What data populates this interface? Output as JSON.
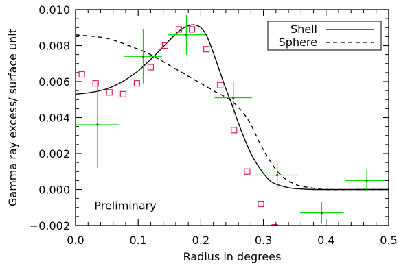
{
  "chart_data": {
    "type": "line",
    "title": "",
    "xlabel": "Radius in degrees",
    "ylabel": "Gamma ray excess/ surface unit",
    "xlim": [
      0,
      0.5
    ],
    "ylim": [
      -0.002,
      0.01
    ],
    "x_ticks": [
      0.0,
      0.1,
      0.2,
      0.3,
      0.4,
      0.5
    ],
    "x_tick_labels": [
      "0.0",
      "0.1",
      "0.2",
      "0.3",
      "0.4",
      "0.5"
    ],
    "y_ticks": [
      -0.002,
      0.0,
      0.002,
      0.004,
      0.006,
      0.008,
      0.01
    ],
    "y_tick_labels": [
      "−0.002",
      "0.000",
      "0.002",
      "0.004",
      "0.006",
      "0.008",
      "0.010"
    ],
    "grid": false,
    "legend_position": "top-right",
    "annotation": "Preliminary",
    "colors": {
      "shell": "#000000",
      "sphere": "#000000",
      "data_points": "#00dd00",
      "squares": "#e0205a"
    },
    "series": [
      {
        "name": "Shell",
        "kind": "curve",
        "style": "solid",
        "x": [
          0.0,
          0.025,
          0.05,
          0.075,
          0.1,
          0.125,
          0.15,
          0.165,
          0.18,
          0.19,
          0.2,
          0.21,
          0.22,
          0.23,
          0.24,
          0.25,
          0.26,
          0.27,
          0.28,
          0.29,
          0.3,
          0.31,
          0.32,
          0.34,
          0.36,
          0.38,
          0.4,
          0.45,
          0.5
        ],
        "values": [
          0.0053,
          0.0054,
          0.0056,
          0.006,
          0.0066,
          0.0074,
          0.0083,
          0.0088,
          0.0091,
          0.00915,
          0.009,
          0.0085,
          0.0076,
          0.0066,
          0.0056,
          0.0047,
          0.0037,
          0.0028,
          0.002,
          0.0014,
          0.0009,
          0.0005,
          0.0003,
          0.0001,
          3e-05,
          0.0,
          0.0,
          0.0,
          0.0
        ]
      },
      {
        "name": "Sphere",
        "kind": "curve",
        "style": "dashed",
        "x": [
          0.0,
          0.05,
          0.1,
          0.125,
          0.15,
          0.175,
          0.2,
          0.225,
          0.25,
          0.275,
          0.3,
          0.325,
          0.35,
          0.375,
          0.4,
          0.45,
          0.5
        ],
        "values": [
          0.0086,
          0.0084,
          0.0078,
          0.0074,
          0.0069,
          0.0064,
          0.0059,
          0.0054,
          0.0049,
          0.0039,
          0.0022,
          0.0009,
          0.0003,
          0.0001,
          0.0,
          0.0,
          0.0
        ]
      },
      {
        "name": "",
        "kind": "errorbars",
        "x": [
          0.035,
          0.108,
          0.177,
          0.252,
          0.322,
          0.393,
          0.465
        ],
        "values": [
          0.0036,
          0.0074,
          0.0086,
          0.0051,
          0.0008,
          -0.0013,
          0.0005
        ],
        "x_err": [
          0.035,
          0.03,
          0.03,
          0.03,
          0.035,
          0.035,
          0.035
        ],
        "y_err": [
          0.0024,
          0.0015,
          0.0011,
          0.0009,
          0.0007,
          0.0006,
          0.0006
        ]
      },
      {
        "name": "",
        "kind": "squares",
        "x": [
          0.01,
          0.032,
          0.054,
          0.076,
          0.098,
          0.12,
          0.143,
          0.165,
          0.186,
          0.209,
          0.231,
          0.253,
          0.274,
          0.296,
          0.318
        ],
        "values": [
          0.0064,
          0.0059,
          0.0054,
          0.0053,
          0.0059,
          0.0068,
          0.008,
          0.0089,
          0.0089,
          0.0078,
          0.0058,
          0.0033,
          0.001,
          -0.0008,
          -0.0021
        ]
      }
    ]
  }
}
